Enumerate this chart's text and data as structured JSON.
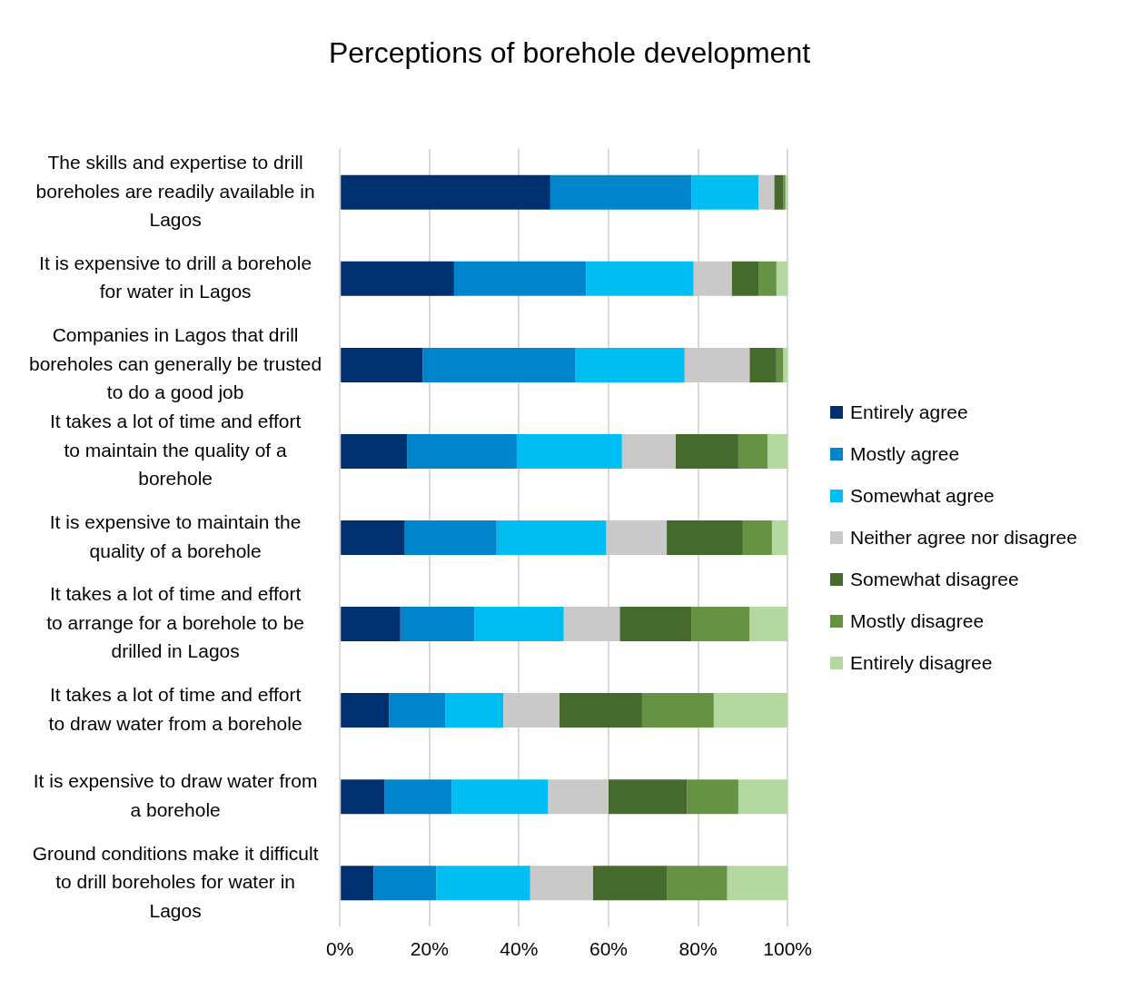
{
  "chart_data": {
    "type": "bar",
    "orientation": "horizontal",
    "stacked": true,
    "title": "Perceptions of borehole development",
    "categories": [
      "The skills and expertise to drill boreholes are readily available in Lagos",
      "It is expensive to drill a borehole for water in Lagos",
      "Companies in Lagos that drill boreholes can generally be trusted to do a good job",
      "It takes a lot of time and effort to maintain the quality of a borehole",
      "It is expensive to maintain the quality of a borehole",
      "It takes a lot of time and effort to arrange for a borehole to be drilled in Lagos",
      "It takes a lot of time and effort to draw water from a borehole",
      "It is expensive to draw water from a borehole",
      "Ground conditions make it difficult to drill boreholes for water in Lagos"
    ],
    "series": [
      {
        "name": "Entirely agree",
        "color": "#003070",
        "values": [
          47,
          25.5,
          18.5,
          15,
          14.5,
          13.5,
          11,
          10,
          7.5
        ]
      },
      {
        "name": "Mostly agree",
        "color": "#0084cc",
        "values": [
          31.5,
          29.5,
          34,
          24.5,
          20.5,
          16.5,
          12.5,
          15,
          14
        ]
      },
      {
        "name": "Somewhat agree",
        "color": "#00bef2",
        "values": [
          15,
          24,
          24.5,
          23.5,
          24.5,
          20,
          13,
          21.5,
          21
        ]
      },
      {
        "name": "Neither agree nor disagree",
        "color": "#c9c9c9",
        "values": [
          3.5,
          8.5,
          14.5,
          12,
          13.5,
          12.5,
          12.5,
          13.5,
          14
        ]
      },
      {
        "name": "Somewhat disagree",
        "color": "#46692d",
        "values": [
          2,
          6,
          6,
          14,
          17,
          16,
          18.5,
          17.5,
          16.5
        ]
      },
      {
        "name": "Mostly disagree",
        "color": "#669343",
        "values": [
          0.5,
          4,
          1.5,
          6.5,
          6.5,
          13,
          16,
          11.5,
          13.5
        ]
      },
      {
        "name": "Entirely disagree",
        "color": "#b5d8a0",
        "values": [
          0.5,
          2.5,
          1,
          4.5,
          3.5,
          8.5,
          16.5,
          11,
          13.5
        ]
      }
    ],
    "xlim": [
      0,
      100
    ],
    "xticks": [
      {
        "value": 0,
        "label": "0%"
      },
      {
        "value": 20,
        "label": "20%"
      },
      {
        "value": 40,
        "label": "40%"
      },
      {
        "value": 60,
        "label": "60%"
      },
      {
        "value": 80,
        "label": "80%"
      },
      {
        "value": 100,
        "label": "100%"
      }
    ],
    "grid": "x",
    "legend": "right"
  }
}
